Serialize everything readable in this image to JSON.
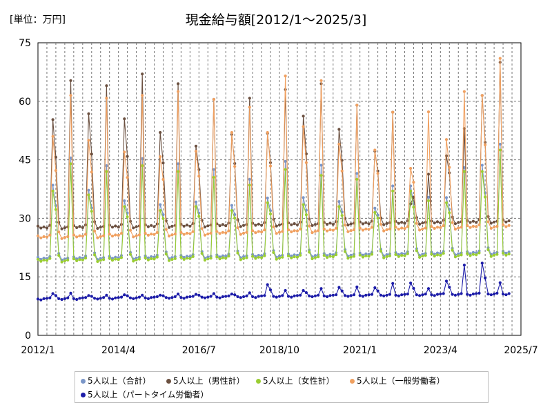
{
  "unit_label": "[単位：万円]",
  "chart_data": {
    "type": "line",
    "title": "現金給与額[2012/1～2025/3]",
    "ylim": [
      0,
      75
    ],
    "y_ticks": [
      "0",
      "15",
      "30",
      "45",
      "60",
      "75"
    ],
    "x_ticks": [
      "2012/1",
      "2014/4",
      "2016/7",
      "2018/10",
      "2021/1",
      "2023/4",
      "2025/7"
    ],
    "grid": "dashed",
    "legend_position": "bottom",
    "series": [
      {
        "name": "5人以上（合計）",
        "color": "#7a96c8",
        "peaks": [
          [
            38.5,
            45.5
          ],
          [
            37.2,
            43.5
          ],
          [
            34.5,
            45.3
          ],
          [
            33.5,
            44
          ],
          [
            34.2,
            42.5
          ],
          [
            33.3,
            40
          ],
          [
            35.2,
            44.6
          ],
          [
            35.3,
            43.6
          ],
          [
            34.3,
            41.5
          ],
          [
            32.6,
            38.3
          ],
          [
            38.3,
            35.4
          ],
          [
            35.3,
            43
          ],
          [
            43.6,
            49
          ]
        ]
      },
      {
        "name": "5人以上（男性計）",
        "color": "#6b5040",
        "peaks": [
          [
            55.3,
            65.3
          ],
          [
            56.8,
            64
          ],
          [
            55.5,
            67
          ],
          [
            52,
            64.5
          ],
          [
            48.5,
            60.5
          ],
          [
            51.5,
            60.8
          ],
          [
            51.8,
            63
          ],
          [
            56.2,
            64.5
          ],
          [
            52.8,
            59
          ],
          [
            47.2,
            57.2
          ],
          [
            33.7,
            41.3
          ],
          [
            46,
            53
          ],
          [
            61.5,
            70
          ]
        ]
      },
      {
        "name": "5人以上（女性計）",
        "color": "#9acd32",
        "peaks": [
          [
            37,
            44
          ],
          [
            36,
            42
          ],
          [
            33,
            43.5
          ],
          [
            32,
            42
          ],
          [
            33,
            40.5
          ],
          [
            32,
            38.5
          ],
          [
            34,
            42.5
          ],
          [
            33.5,
            41
          ],
          [
            33,
            40
          ],
          [
            31.5,
            37
          ],
          [
            37,
            34.5
          ],
          [
            34,
            42
          ],
          [
            42,
            47.5
          ]
        ]
      },
      {
        "name": "5人以上（一般労働者）",
        "color": "#f0a060",
        "peaks": [
          [
            51,
            61.5
          ],
          [
            50,
            60.8
          ],
          [
            47,
            61.5
          ],
          [
            45.8,
            62.5
          ],
          [
            47.2,
            60.5
          ],
          [
            52,
            58.5
          ],
          [
            52,
            66.5
          ],
          [
            53.5,
            65.3
          ],
          [
            49,
            59
          ],
          [
            47.5,
            57.2
          ],
          [
            42.8,
            57.3
          ],
          [
            50.2,
            62.5
          ],
          [
            61.5,
            71
          ]
        ]
      },
      {
        "name": "5人以上（パートタイム労働者）",
        "color": "#1c1ca8",
        "peaks": [
          [
            10.7,
            10.8
          ],
          [
            10.2,
            10.3
          ],
          [
            10.4,
            10.3
          ],
          [
            10.3,
            10.6
          ],
          [
            10.5,
            10.7
          ],
          [
            10.6,
            10.9
          ],
          [
            13,
            11.5
          ],
          [
            11.5,
            12
          ],
          [
            12.3,
            12.4
          ],
          [
            12.2,
            13.3
          ],
          [
            13.4,
            12
          ],
          [
            13.9,
            18
          ],
          [
            18.5,
            13.5
          ]
        ]
      }
    ]
  }
}
